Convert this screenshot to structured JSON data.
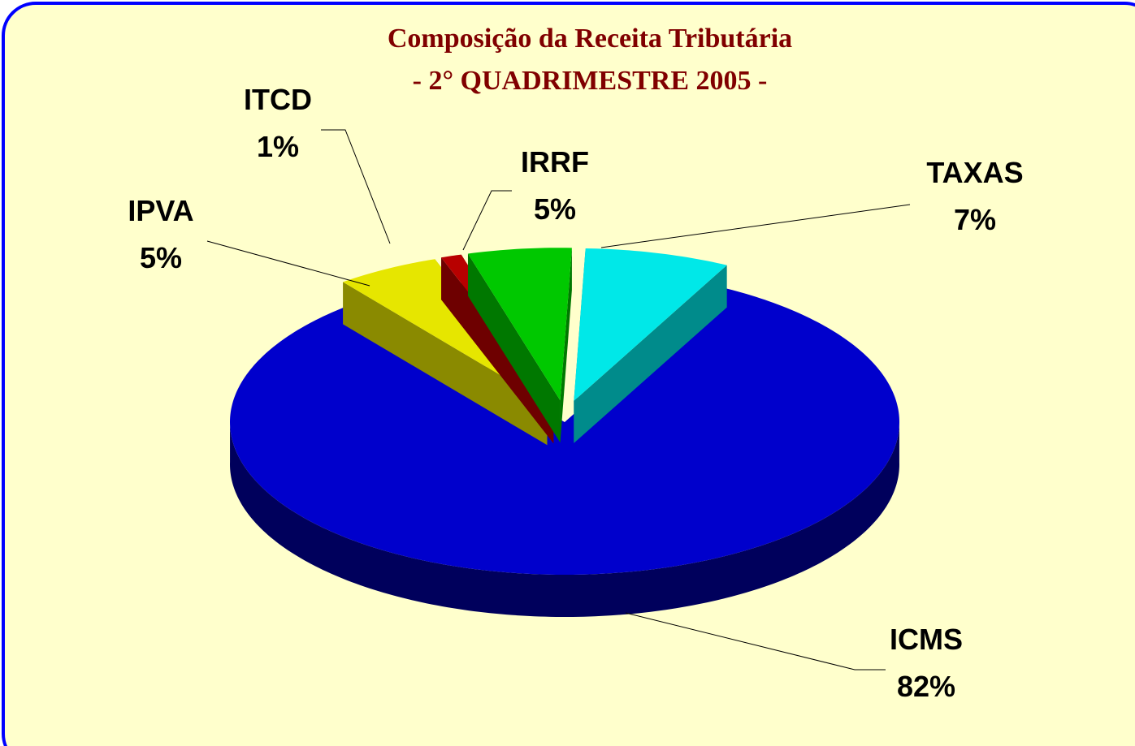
{
  "chart_data": {
    "type": "pie3d",
    "title": "Composição da Receita Tributária",
    "subtitle": "- 2° QUADRIMESTRE 2005 -",
    "categories": [
      "ICMS",
      "IPVA",
      "ITCD",
      "IRRF",
      "TAXAS"
    ],
    "values": [
      82,
      5,
      1,
      5,
      7
    ],
    "value_labels": [
      "82%",
      "5%",
      "1%",
      "5%",
      "7%"
    ],
    "colors": [
      "#0000cc",
      "#e6e600",
      "#b80000",
      "#00c800",
      "#00e8e8"
    ]
  }
}
